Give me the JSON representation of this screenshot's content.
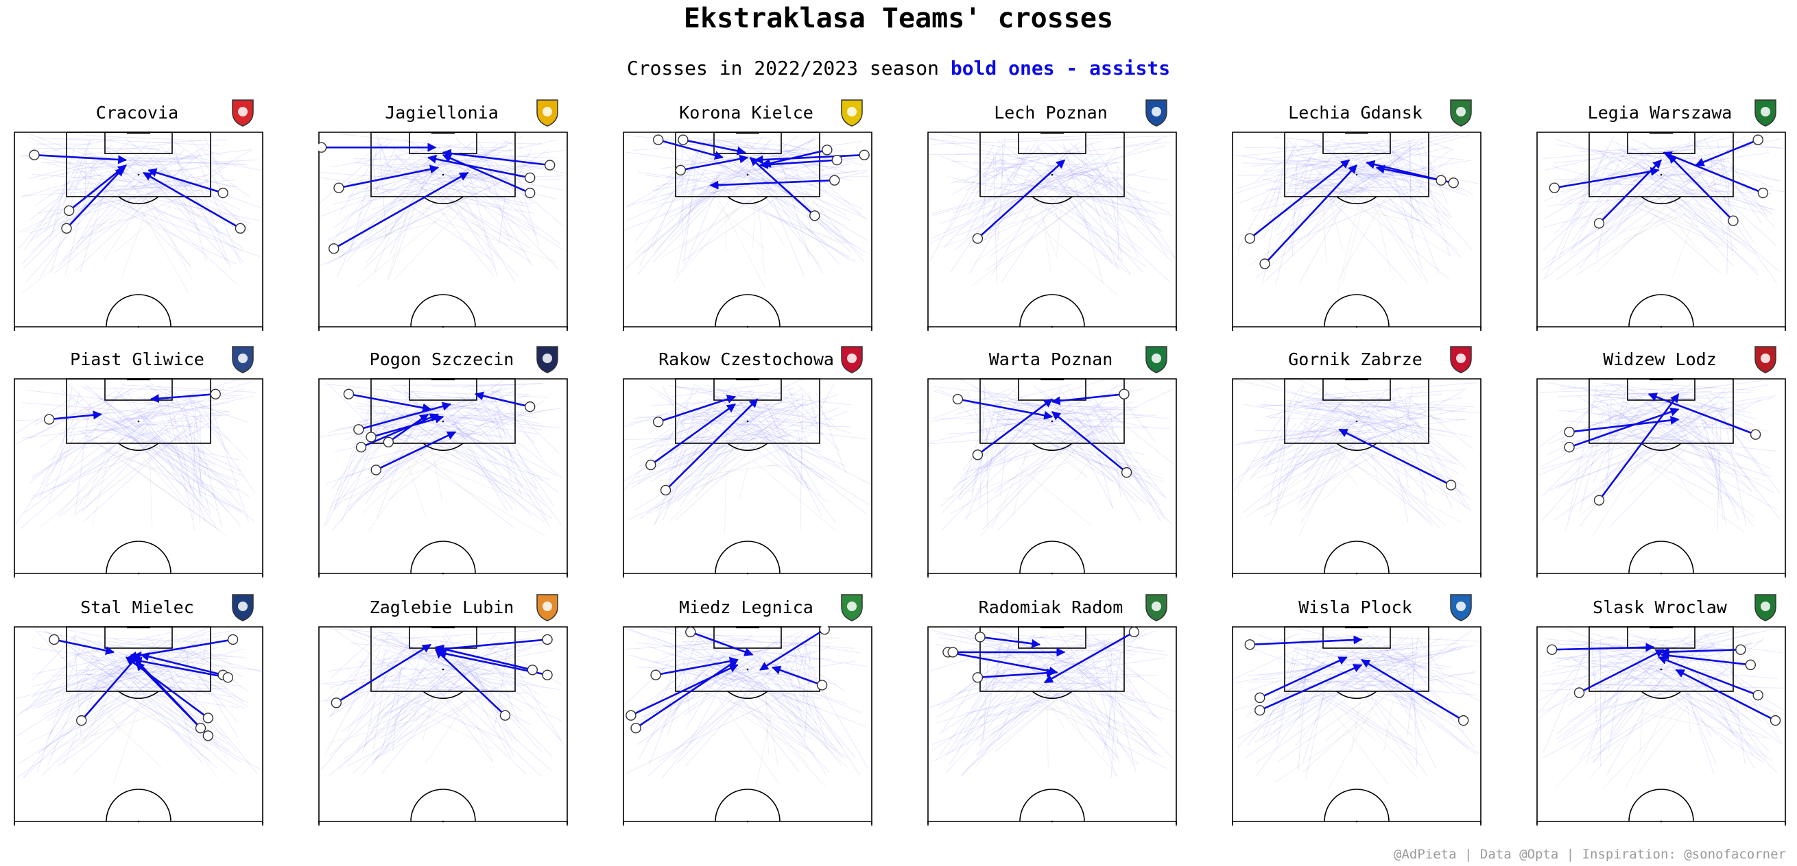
{
  "title": "Ekstraklasa Teams' crosses",
  "subtitle_prefix": "Crosses in 2022/2023 season",
  "subtitle_highlight": "bold ones - assists",
  "credit": "@AdPieta | Data @Opta | Inspiration: @sonofacorner",
  "colors": {
    "cross": "#0a0ae6",
    "background_crosses": "#8080ff",
    "pitch_lines": "#000000",
    "credit": "#9a9a9a"
  },
  "chart_data": {
    "type": "scatter",
    "description_of_units": "pitch coordinates 0-100; x = across pitch width, y = distance from attacked goal line",
    "xlim": [
      0,
      100
    ],
    "ylim": [
      0,
      78
    ],
    "teams": [
      {
        "name": "Cracovia",
        "badge": "cracovia-badge",
        "badge_color": "#d8262b",
        "assists": [
          [
            8,
            9,
            45,
            11
          ],
          [
            22,
            31,
            45,
            13
          ],
          [
            21,
            38,
            44,
            14
          ],
          [
            84,
            24,
            54,
            15
          ],
          [
            91,
            38,
            52,
            16
          ]
        ]
      },
      {
        "name": "Jagiellonia",
        "badge": "jagiellonia-badge",
        "badge_color": "#e8b100",
        "assists": [
          [
            1,
            6,
            47,
            6
          ],
          [
            8,
            22,
            48,
            14
          ],
          [
            93,
            13,
            50,
            8
          ],
          [
            85,
            18,
            44,
            10
          ],
          [
            85,
            24,
            50,
            9
          ],
          [
            6,
            46,
            60,
            16
          ]
        ]
      },
      {
        "name": "Korona Kielce",
        "badge": "korona-badge",
        "badge_color": "#e5c200",
        "assists": [
          [
            14,
            3,
            40,
            10
          ],
          [
            24,
            3,
            49,
            8
          ],
          [
            23,
            15,
            50,
            10
          ],
          [
            82,
            7,
            56,
            13
          ],
          [
            97,
            9,
            53,
            11
          ],
          [
            86,
            11,
            55,
            13
          ],
          [
            85,
            19,
            35,
            21
          ],
          [
            77,
            33,
            51,
            10
          ]
        ]
      },
      {
        "name": "Lech Poznan",
        "badge": "lech-badge",
        "badge_color": "#1a4fa0",
        "assists": [
          [
            20,
            42,
            55,
            11
          ]
        ]
      },
      {
        "name": "Lechia Gdansk",
        "badge": "lechia-badge",
        "badge_color": "#2b7a3a",
        "assists": [
          [
            7,
            42,
            47,
            11
          ],
          [
            13,
            52,
            50,
            13
          ],
          [
            84,
            19,
            54,
            12
          ],
          [
            89,
            20,
            58,
            14
          ]
        ]
      },
      {
        "name": "Legia Warszawa",
        "badge": "legia-badge",
        "badge_color": "#1f7a34",
        "assists": [
          [
            7,
            22,
            49,
            15
          ],
          [
            25,
            36,
            50,
            11
          ],
          [
            89,
            3,
            64,
            13
          ],
          [
            91,
            24,
            51,
            8
          ],
          [
            79,
            35,
            53,
            9
          ]
        ]
      },
      {
        "name": "Piast Gliwice",
        "badge": "piast-badge",
        "badge_color": "#2a4a8a",
        "assists": [
          [
            14,
            16,
            35,
            14
          ],
          [
            81,
            6,
            55,
            8
          ]
        ]
      },
      {
        "name": "Pogon Szczecin",
        "badge": "pogon-badge",
        "badge_color": "#1f2a5a",
        "assists": [
          [
            12,
            6,
            45,
            12
          ],
          [
            16,
            20,
            53,
            10
          ],
          [
            21,
            23,
            50,
            15
          ],
          [
            17,
            27,
            48,
            14
          ],
          [
            28,
            25,
            44,
            14
          ],
          [
            85,
            11,
            63,
            6
          ],
          [
            23,
            36,
            55,
            21
          ]
        ]
      },
      {
        "name": "Rakow Czestochowa",
        "badge": "rakow-badge",
        "badge_color": "#c4122f",
        "assists": [
          [
            14,
            17,
            45,
            7
          ],
          [
            11,
            34,
            45,
            10
          ],
          [
            17,
            44,
            54,
            8
          ]
        ]
      },
      {
        "name": "Warta Poznan",
        "badge": "warta-badge",
        "badge_color": "#1b7a3c",
        "assists": [
          [
            12,
            8,
            50,
            15
          ],
          [
            20,
            30,
            50,
            8
          ],
          [
            80,
            37,
            50,
            13
          ],
          [
            79,
            6,
            50,
            9
          ]
        ]
      },
      {
        "name": "Gornik Zabrze",
        "badge": "gornik-badge",
        "badge_color": "#c4122f",
        "assists": [
          [
            88,
            42,
            43,
            20
          ]
        ]
      },
      {
        "name": "Widzew Lodz",
        "badge": "widzew-badge",
        "badge_color": "#b81d24",
        "assists": [
          [
            13,
            21,
            57,
            16
          ],
          [
            13,
            27,
            57,
            12
          ],
          [
            88,
            22,
            45,
            6
          ],
          [
            25,
            48,
            57,
            6
          ]
        ]
      }
    ],
    "teams_row3": [
      {
        "name": "Stal Mielec",
        "badge": "stal-badge",
        "badge_color": "#1f3c7a",
        "assists": [
          [
            16,
            5,
            40,
            10
          ],
          [
            27,
            37,
            51,
            10
          ],
          [
            88,
            5,
            46,
            12
          ],
          [
            84,
            19,
            51,
            11
          ],
          [
            86,
            20,
            48,
            13
          ],
          [
            78,
            36,
            45,
            12
          ],
          [
            75,
            40,
            47,
            11
          ],
          [
            78,
            43,
            49,
            14
          ]
        ]
      },
      {
        "name": "Zaglebie Lubin",
        "badge": "zaglebie-badge",
        "badge_color": "#e38b2b",
        "assists": [
          [
            7,
            30,
            45,
            7
          ],
          [
            92,
            5,
            47,
            9
          ],
          [
            86,
            17,
            47,
            8
          ],
          [
            92,
            19,
            48,
            10
          ],
          [
            75,
            35,
            47,
            9
          ]
        ]
      },
      {
        "name": "Miedz Legnica",
        "badge": "miedz-badge",
        "badge_color": "#2e8b3d",
        "assists": [
          [
            27,
            2,
            52,
            11
          ],
          [
            13,
            19,
            46,
            13
          ],
          [
            3,
            35,
            46,
            15
          ],
          [
            5,
            40,
            46,
            13
          ],
          [
            80,
            23,
            60,
            16
          ],
          [
            81,
            1,
            55,
            17
          ]
        ]
      },
      {
        "name": "Radomiak Radom",
        "badge": "radomiak-badge",
        "badge_color": "#2e7a3c",
        "assists": [
          [
            8,
            10,
            52,
            18
          ],
          [
            20,
            20,
            51,
            18
          ],
          [
            21,
            4,
            45,
            7
          ],
          [
            83,
            2,
            47,
            22
          ],
          [
            10,
            10,
            55,
            10
          ]
        ]
      },
      {
        "name": "Wisla Plock",
        "badge": "wisla-badge",
        "badge_color": "#1f66b8",
        "assists": [
          [
            7,
            7,
            52,
            5
          ],
          [
            11,
            28,
            46,
            12
          ],
          [
            11,
            33,
            52,
            15
          ],
          [
            93,
            37,
            52,
            13
          ]
        ]
      },
      {
        "name": "Slask Wroclaw",
        "badge": "slask-badge",
        "badge_color": "#1f7a34",
        "assists": [
          [
            6,
            9,
            47,
            8
          ],
          [
            17,
            26,
            51,
            9
          ],
          [
            82,
            9,
            50,
            10
          ],
          [
            86,
            15,
            50,
            11
          ],
          [
            89,
            27,
            49,
            12
          ],
          [
            96,
            37,
            56,
            17
          ]
        ]
      }
    ]
  }
}
